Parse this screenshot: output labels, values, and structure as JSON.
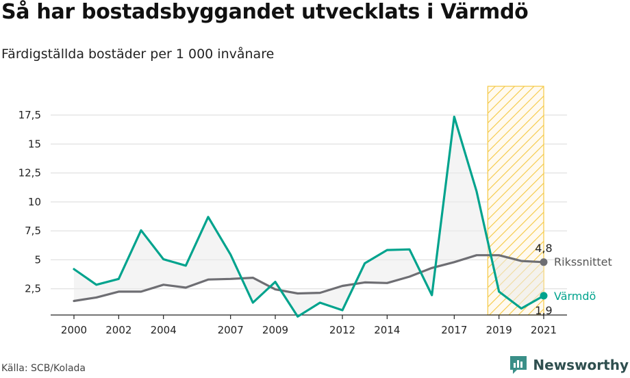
{
  "header": {
    "title": "Så har bostadsbyggandet utvecklats i Värmdö",
    "subtitle": "Färdigställda bostäder per 1 000 invånare"
  },
  "footer": {
    "source": "Källa: SCB/Kolada",
    "brand": "Newsworthy"
  },
  "colors": {
    "varmdo": "#00a38d",
    "riket": "#6e6e73",
    "highlight": "#f5c842",
    "fill": "#ebebeb"
  },
  "chart_data": {
    "type": "line",
    "x": [
      2000,
      2001,
      2002,
      2003,
      2004,
      2005,
      2006,
      2007,
      2008,
      2009,
      2010,
      2011,
      2012,
      2013,
      2014,
      2015,
      2016,
      2017,
      2018,
      2019,
      2020,
      2021
    ],
    "x_tick_labels": [
      "2000",
      "2002",
      "2004",
      "2007",
      "2009",
      "2012",
      "2014",
      "2017",
      "2019",
      "2021"
    ],
    "y_ticks": [
      2.5,
      5,
      7.5,
      10,
      12.5,
      15,
      17.5
    ],
    "y_tick_labels": [
      "2,5",
      "5",
      "7,5",
      "10",
      "12,5",
      "15",
      "17,5"
    ],
    "ylim": [
      0,
      18
    ],
    "grid": true,
    "highlight_range": [
      2018.5,
      2021
    ],
    "series": [
      {
        "name": "Värmdö",
        "color": "#00a38d",
        "values": [
          4.2,
          2.85,
          3.35,
          7.55,
          5.05,
          4.5,
          8.7,
          5.45,
          1.3,
          3.1,
          0.1,
          1.3,
          0.65,
          4.7,
          5.85,
          5.9,
          1.95,
          17.35,
          10.9,
          2.25,
          0.8,
          1.9
        ],
        "end_label": "1,9"
      },
      {
        "name": "Rikssnittet",
        "color": "#6e6e73",
        "values": [
          1.45,
          1.75,
          2.25,
          2.25,
          2.85,
          2.6,
          3.3,
          3.35,
          3.45,
          2.45,
          2.1,
          2.15,
          2.75,
          3.05,
          3.0,
          3.55,
          4.3,
          4.8,
          5.4,
          5.4,
          4.9,
          4.8
        ],
        "end_label": "4,8"
      }
    ]
  }
}
